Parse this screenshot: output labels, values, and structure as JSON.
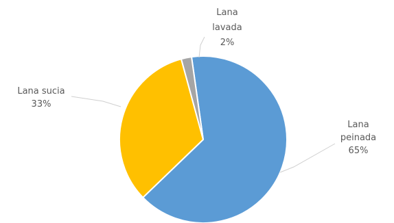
{
  "chart_data": {
    "type": "pie",
    "title": "",
    "slices": [
      {
        "name": "Lana peinada",
        "value": 65,
        "label_lines": [
          "Lana",
          "peinada",
          "65%"
        ],
        "color": "#5B9BD5"
      },
      {
        "name": "Lana sucia",
        "value": 33,
        "label_lines": [
          "Lana sucia",
          "33%"
        ],
        "color": "#FFC000"
      },
      {
        "name": "Lana lavada",
        "value": 2,
        "label_lines": [
          "Lana",
          "lavada",
          "2%"
        ],
        "color": "#A5A5A5"
      }
    ],
    "legend": "none",
    "data_labels": "outside with leader lines"
  }
}
